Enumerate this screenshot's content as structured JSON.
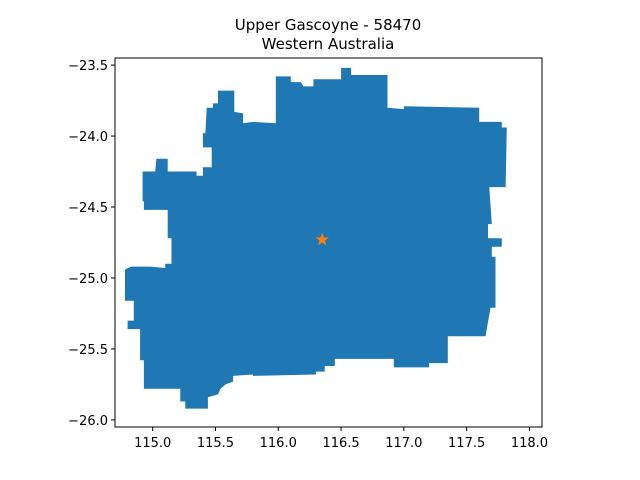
{
  "title": {
    "line1": "Upper Gascoyne - 58470",
    "line2": "Western Australia"
  },
  "colors": {
    "region_fill": "#1f77b4",
    "marker": "#ff7f0e",
    "axes": "#000000",
    "background": "#ffffff"
  },
  "chart_data": {
    "type": "map",
    "title": "Upper Gascoyne - 58470\nWestern Australia",
    "xlabel": "",
    "ylabel": "",
    "xlim": [
      114.7,
      118.1
    ],
    "ylim": [
      -26.05,
      -23.45
    ],
    "grid": false,
    "x_ticks": [
      115.0,
      115.5,
      116.0,
      116.5,
      117.0,
      117.5,
      118.0
    ],
    "x_tick_labels": [
      "115.0",
      "115.5",
      "116.0",
      "116.5",
      "117.0",
      "117.5",
      "118.0"
    ],
    "y_ticks": [
      -23.5,
      -24.0,
      -24.5,
      -25.0,
      -25.5,
      -26.0
    ],
    "y_tick_labels": [
      "−23.5",
      "−24.0",
      "−24.5",
      "−25.0",
      "−25.5",
      "−26.0"
    ],
    "region": {
      "name": "Upper Gascoyne - 58470",
      "boundary": [
        [
          115.52,
          -23.68
        ],
        [
          115.65,
          -23.68
        ],
        [
          115.65,
          -23.83
        ],
        [
          115.72,
          -23.84
        ],
        [
          115.72,
          -23.91
        ],
        [
          115.8,
          -23.9
        ],
        [
          115.98,
          -23.91
        ],
        [
          115.98,
          -23.58
        ],
        [
          116.1,
          -23.58
        ],
        [
          116.1,
          -23.62
        ],
        [
          116.18,
          -23.62
        ],
        [
          116.2,
          -23.65
        ],
        [
          116.28,
          -23.65
        ],
        [
          116.28,
          -23.6
        ],
        [
          116.5,
          -23.6
        ],
        [
          116.5,
          -23.52
        ],
        [
          116.58,
          -23.52
        ],
        [
          116.58,
          -23.57
        ],
        [
          116.87,
          -23.57
        ],
        [
          116.87,
          -23.8
        ],
        [
          117.0,
          -23.81
        ],
        [
          117.0,
          -23.79
        ],
        [
          117.6,
          -23.8
        ],
        [
          117.6,
          -23.9
        ],
        [
          117.78,
          -23.9
        ],
        [
          117.78,
          -23.94
        ],
        [
          117.82,
          -23.94
        ],
        [
          117.81,
          -24.36
        ],
        [
          117.68,
          -24.36
        ],
        [
          117.7,
          -24.62
        ],
        [
          117.67,
          -24.62
        ],
        [
          117.67,
          -24.72
        ],
        [
          117.78,
          -24.72
        ],
        [
          117.78,
          -24.78
        ],
        [
          117.7,
          -24.78
        ],
        [
          117.7,
          -24.85
        ],
        [
          117.73,
          -24.85
        ],
        [
          117.73,
          -25.21
        ],
        [
          117.69,
          -25.21
        ],
        [
          117.65,
          -25.41
        ],
        [
          117.35,
          -25.41
        ],
        [
          117.35,
          -25.6
        ],
        [
          117.2,
          -25.6
        ],
        [
          117.2,
          -25.63
        ],
        [
          116.92,
          -25.63
        ],
        [
          116.92,
          -25.57
        ],
        [
          116.45,
          -25.57
        ],
        [
          116.45,
          -25.62
        ],
        [
          116.37,
          -25.62
        ],
        [
          116.37,
          -25.66
        ],
        [
          116.3,
          -25.66
        ],
        [
          116.3,
          -25.68
        ],
        [
          115.8,
          -25.69
        ],
        [
          115.8,
          -25.68
        ],
        [
          115.64,
          -25.69
        ],
        [
          115.64,
          -25.73
        ],
        [
          115.58,
          -25.75
        ],
        [
          115.54,
          -25.78
        ],
        [
          115.52,
          -25.82
        ],
        [
          115.44,
          -25.84
        ],
        [
          115.44,
          -25.92
        ],
        [
          115.26,
          -25.92
        ],
        [
          115.26,
          -25.87
        ],
        [
          115.22,
          -25.87
        ],
        [
          115.22,
          -25.78
        ],
        [
          114.93,
          -25.78
        ],
        [
          114.93,
          -25.58
        ],
        [
          114.9,
          -25.58
        ],
        [
          114.9,
          -25.36
        ],
        [
          114.8,
          -25.36
        ],
        [
          114.8,
          -25.3
        ],
        [
          114.85,
          -25.3
        ],
        [
          114.85,
          -25.16
        ],
        [
          114.78,
          -25.16
        ],
        [
          114.78,
          -24.94
        ],
        [
          114.83,
          -24.92
        ],
        [
          114.98,
          -24.92
        ],
        [
          115.1,
          -24.93
        ],
        [
          115.1,
          -24.9
        ],
        [
          115.15,
          -24.9
        ],
        [
          115.15,
          -24.72
        ],
        [
          115.12,
          -24.72
        ],
        [
          115.12,
          -24.52
        ],
        [
          114.93,
          -24.52
        ],
        [
          114.93,
          -24.46
        ],
        [
          114.92,
          -24.46
        ],
        [
          114.92,
          -24.25
        ],
        [
          115.02,
          -24.25
        ],
        [
          115.03,
          -24.16
        ],
        [
          115.12,
          -24.16
        ],
        [
          115.12,
          -24.25
        ],
        [
          115.35,
          -24.25
        ],
        [
          115.35,
          -24.28
        ],
        [
          115.4,
          -24.28
        ],
        [
          115.4,
          -24.22
        ],
        [
          115.47,
          -24.22
        ],
        [
          115.47,
          -24.08
        ],
        [
          115.4,
          -24.08
        ],
        [
          115.4,
          -23.98
        ],
        [
          115.42,
          -23.98
        ],
        [
          115.43,
          -23.8
        ],
        [
          115.48,
          -23.8
        ],
        [
          115.48,
          -23.77
        ],
        [
          115.52,
          -23.77
        ]
      ]
    },
    "marker": {
      "shape": "star",
      "x": 116.35,
      "y": -24.73,
      "color": "#ff7f0e"
    }
  }
}
